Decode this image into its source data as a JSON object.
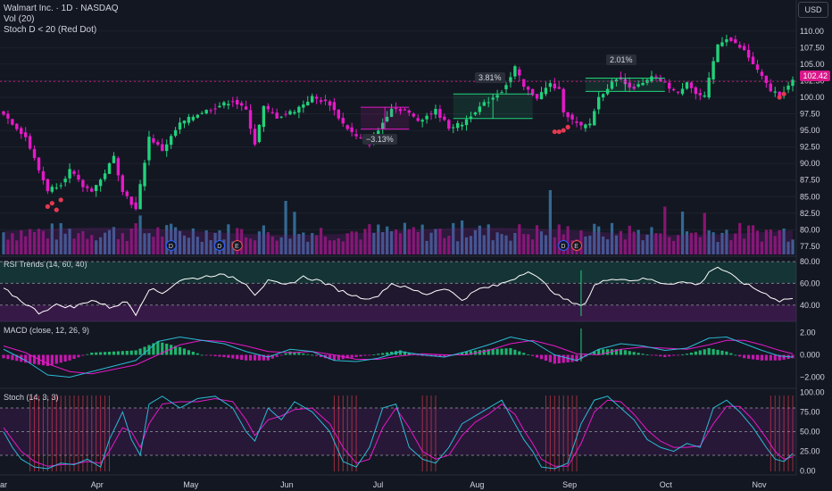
{
  "header": {
    "title": "Walmart Inc. · 1D · NASDAQ",
    "vol": "Vol (20)",
    "indicator": "Stoch D < 20 (Red Dot)",
    "currency": "USD"
  },
  "panes": {
    "rsi_title": "RSI Trends (14, 60, 40)",
    "macd_title": "MACD (close, 12, 26, 9)",
    "stoch_title": "Stoch (14, 3, 3)"
  },
  "colors": {
    "background": "#131722",
    "up": "#22d17a",
    "down": "#e619c8",
    "vol_up": "#3a78a8",
    "vol_down": "#a0157f",
    "rsi": "#ffffff",
    "macd": "#2bbbd4",
    "signal": "#e619c8",
    "stoch_k": "#2bbbd4",
    "stoch_d": "#e619c8",
    "red_dot": "#e53950",
    "red_bar": "#e5395060"
  },
  "annotations": {
    "pct1": "−3.13%",
    "pct2": "3.81%",
    "pct3": "2.01%",
    "current_price": "102.42"
  },
  "chart_data": [
    {
      "type": "candlestick",
      "title": "Walmart Inc. · 1D · NASDAQ",
      "x_ticks": [
        "ar",
        "Apr",
        "May",
        "Jun",
        "Jul",
        "Aug",
        "Sep",
        "Oct",
        "Nov"
      ],
      "y_ticks": [
        "77.50",
        "80.00",
        "82.50",
        "85.00",
        "87.50",
        "90.00",
        "92.50",
        "95.00",
        "97.50",
        "100.00",
        "102.50",
        "105.00",
        "107.50",
        "110.00"
      ],
      "ylim": [
        76,
        112
      ],
      "close_path": [
        [
          0,
          97.5
        ],
        [
          5,
          94
        ],
        [
          8,
          89
        ],
        [
          10,
          86
        ],
        [
          13,
          87
        ],
        [
          15,
          89
        ],
        [
          18,
          86.5
        ],
        [
          20,
          86
        ],
        [
          22,
          87.5
        ],
        [
          25,
          91
        ],
        [
          27,
          86
        ],
        [
          30,
          83
        ],
        [
          33,
          94
        ],
        [
          36,
          92
        ],
        [
          40,
          96
        ],
        [
          44,
          97.5
        ],
        [
          48,
          98.5
        ],
        [
          52,
          99.5
        ],
        [
          55,
          98
        ],
        [
          57,
          93
        ],
        [
          59,
          98.5
        ],
        [
          62,
          97
        ],
        [
          66,
          98
        ],
        [
          70,
          100
        ],
        [
          74,
          99
        ],
        [
          77,
          96
        ],
        [
          80,
          94
        ],
        [
          83,
          93
        ],
        [
          85,
          95
        ],
        [
          88,
          98.5
        ],
        [
          91,
          98
        ],
        [
          94,
          96.5
        ],
        [
          98,
          98
        ],
        [
          101,
          95.5
        ],
        [
          104,
          96
        ],
        [
          107,
          98
        ],
        [
          110,
          99.5
        ],
        [
          113,
          101
        ],
        [
          115,
          103
        ],
        [
          116,
          104.5
        ],
        [
          118,
          101.5
        ],
        [
          121,
          100
        ],
        [
          124,
          102
        ],
        [
          126,
          101
        ],
        [
          127,
          98
        ],
        [
          129,
          96.5
        ],
        [
          131,
          95.5
        ],
        [
          133,
          96
        ],
        [
          135,
          100
        ],
        [
          137,
          101.5
        ],
        [
          139,
          103
        ],
        [
          141,
          102
        ],
        [
          143,
          101.5
        ],
        [
          145,
          102
        ],
        [
          147,
          103
        ],
        [
          149,
          102.5
        ],
        [
          151,
          101.5
        ],
        [
          153,
          100.5
        ],
        [
          155,
          102.5
        ],
        [
          157,
          100.5
        ],
        [
          159,
          100
        ],
        [
          162,
          108
        ],
        [
          164,
          109
        ],
        [
          166,
          108
        ],
        [
          168,
          107
        ],
        [
          170,
          105
        ],
        [
          172,
          103
        ],
        [
          174,
          101
        ],
        [
          176,
          100.5
        ],
        [
          177,
          101
        ],
        [
          179,
          102.4
        ]
      ],
      "red_dots": [
        {
          "i": 10,
          "v": 83.5
        },
        {
          "i": 11,
          "v": 84
        },
        {
          "i": 12,
          "v": 83
        },
        {
          "i": 13,
          "v": 84.5
        },
        {
          "i": 125,
          "v": 94.8
        },
        {
          "i": 126,
          "v": 94.8
        },
        {
          "i": 127,
          "v": 95
        },
        {
          "i": 128,
          "v": 95.5
        },
        {
          "i": 176,
          "v": 100
        },
        {
          "i": 177,
          "v": 100.5
        }
      ],
      "ranges": [
        {
          "i0": 81,
          "i1": 92,
          "v0": 98.5,
          "v1": 95.2,
          "label": "−3.13%"
        },
        {
          "i0": 102,
          "i1": 120,
          "v0": 96.8,
          "v1": 100.5,
          "label": "3.81%"
        },
        {
          "i0": 132,
          "i1": 150,
          "v0": 100.9,
          "v1": 102.9,
          "label": "2.01%"
        }
      ]
    },
    {
      "type": "bar",
      "title": "Vol (20)",
      "note": "volume bars colored by candle direction, with 20-period average"
    },
    {
      "type": "line",
      "title": "RSI Trends (14, 60, 40)",
      "y_ticks": [
        "40.00",
        "60.00",
        "80.00"
      ],
      "ylim": [
        25,
        85
      ],
      "levels": [
        60,
        40
      ],
      "points": [
        [
          0,
          55
        ],
        [
          4,
          44
        ],
        [
          8,
          33
        ],
        [
          12,
          40
        ],
        [
          16,
          38
        ],
        [
          20,
          45
        ],
        [
          24,
          38
        ],
        [
          28,
          43
        ],
        [
          30,
          32
        ],
        [
          33,
          55
        ],
        [
          36,
          51
        ],
        [
          40,
          63
        ],
        [
          44,
          65
        ],
        [
          48,
          68
        ],
        [
          52,
          66
        ],
        [
          55,
          60
        ],
        [
          57,
          50
        ],
        [
          60,
          62
        ],
        [
          64,
          58
        ],
        [
          68,
          66
        ],
        [
          72,
          62
        ],
        [
          76,
          54
        ],
        [
          80,
          48
        ],
        [
          84,
          46
        ],
        [
          88,
          60
        ],
        [
          92,
          55
        ],
        [
          96,
          50
        ],
        [
          100,
          56
        ],
        [
          104,
          45
        ],
        [
          108,
          55
        ],
        [
          112,
          58
        ],
        [
          116,
          65
        ],
        [
          119,
          72
        ],
        [
          122,
          62
        ],
        [
          126,
          48
        ],
        [
          130,
          40
        ],
        [
          132,
          42
        ],
        [
          134,
          58
        ],
        [
          138,
          65
        ],
        [
          142,
          63
        ],
        [
          146,
          64
        ],
        [
          150,
          60
        ],
        [
          154,
          61
        ],
        [
          158,
          59
        ],
        [
          160,
          71
        ],
        [
          162,
          75
        ],
        [
          164,
          70
        ],
        [
          168,
          60
        ],
        [
          172,
          52
        ],
        [
          176,
          44
        ],
        [
          178,
          46
        ],
        [
          179,
          46
        ]
      ]
    },
    {
      "type": "line",
      "title": "MACD (close, 12, 26, 9)",
      "y_ticks": [
        "−2.000",
        "0.000",
        "2.00"
      ],
      "ylim": [
        -3,
        3
      ],
      "macd": [
        [
          0,
          0.5
        ],
        [
          5,
          -0.5
        ],
        [
          10,
          -1.8
        ],
        [
          15,
          -2.0
        ],
        [
          20,
          -1.5
        ],
        [
          25,
          -1.0
        ],
        [
          30,
          -0.5
        ],
        [
          35,
          1.2
        ],
        [
          40,
          1.6
        ],
        [
          45,
          1.3
        ],
        [
          50,
          1.0
        ],
        [
          55,
          0.3
        ],
        [
          60,
          -0.2
        ],
        [
          65,
          0.5
        ],
        [
          70,
          0.3
        ],
        [
          75,
          -0.5
        ],
        [
          80,
          -0.6
        ],
        [
          85,
          -0.3
        ],
        [
          90,
          0.3
        ],
        [
          95,
          0.0
        ],
        [
          100,
          -0.2
        ],
        [
          105,
          0.3
        ],
        [
          110,
          0.9
        ],
        [
          115,
          1.6
        ],
        [
          120,
          1.2
        ],
        [
          125,
          0.0
        ],
        [
          130,
          -0.5
        ],
        [
          135,
          0.5
        ],
        [
          140,
          1.0
        ],
        [
          145,
          0.8
        ],
        [
          150,
          0.4
        ],
        [
          155,
          0.6
        ],
        [
          160,
          1.5
        ],
        [
          164,
          1.6
        ],
        [
          168,
          1.0
        ],
        [
          172,
          0.4
        ],
        [
          176,
          -0.1
        ],
        [
          179,
          -0.2
        ]
      ],
      "signal": [
        [
          0,
          0.8
        ],
        [
          5,
          0.2
        ],
        [
          10,
          -0.8
        ],
        [
          15,
          -1.5
        ],
        [
          20,
          -1.7
        ],
        [
          25,
          -1.3
        ],
        [
          30,
          -0.9
        ],
        [
          35,
          0.0
        ],
        [
          40,
          0.9
        ],
        [
          45,
          1.3
        ],
        [
          50,
          1.2
        ],
        [
          55,
          0.8
        ],
        [
          60,
          0.3
        ],
        [
          65,
          0.2
        ],
        [
          70,
          0.3
        ],
        [
          75,
          0.0
        ],
        [
          80,
          -0.4
        ],
        [
          85,
          -0.4
        ],
        [
          90,
          -0.1
        ],
        [
          95,
          0.1
        ],
        [
          100,
          0.0
        ],
        [
          105,
          0.0
        ],
        [
          110,
          0.4
        ],
        [
          115,
          1.0
        ],
        [
          120,
          1.3
        ],
        [
          125,
          0.8
        ],
        [
          130,
          0.1
        ],
        [
          135,
          0.0
        ],
        [
          140,
          0.5
        ],
        [
          145,
          0.7
        ],
        [
          150,
          0.6
        ],
        [
          155,
          0.5
        ],
        [
          160,
          0.9
        ],
        [
          164,
          1.3
        ],
        [
          168,
          1.3
        ],
        [
          172,
          0.9
        ],
        [
          176,
          0.4
        ],
        [
          179,
          0.1
        ]
      ]
    },
    {
      "type": "line",
      "title": "Stoch (14, 3, 3)",
      "y_ticks": [
        "0.00",
        "25.00",
        "50.00",
        "75.00",
        "100.00"
      ],
      "ylim": [
        -5,
        105
      ],
      "levels": [
        80,
        50,
        20
      ],
      "k": [
        [
          0,
          50
        ],
        [
          2,
          30
        ],
        [
          4,
          15
        ],
        [
          7,
          5
        ],
        [
          10,
          3
        ],
        [
          13,
          10
        ],
        [
          16,
          8
        ],
        [
          19,
          15
        ],
        [
          22,
          5
        ],
        [
          24,
          40
        ],
        [
          27,
          75
        ],
        [
          29,
          40
        ],
        [
          31,
          20
        ],
        [
          33,
          85
        ],
        [
          36,
          95
        ],
        [
          40,
          80
        ],
        [
          44,
          92
        ],
        [
          48,
          95
        ],
        [
          52,
          80
        ],
        [
          55,
          50
        ],
        [
          57,
          38
        ],
        [
          60,
          80
        ],
        [
          63,
          65
        ],
        [
          66,
          88
        ],
        [
          70,
          75
        ],
        [
          74,
          50
        ],
        [
          77,
          12
        ],
        [
          80,
          5
        ],
        [
          83,
          30
        ],
        [
          86,
          80
        ],
        [
          89,
          85
        ],
        [
          92,
          30
        ],
        [
          95,
          15
        ],
        [
          98,
          10
        ],
        [
          101,
          30
        ],
        [
          104,
          60
        ],
        [
          107,
          70
        ],
        [
          110,
          80
        ],
        [
          113,
          90
        ],
        [
          116,
          60
        ],
        [
          118,
          40
        ],
        [
          120,
          25
        ],
        [
          122,
          5
        ],
        [
          125,
          3
        ],
        [
          128,
          10
        ],
        [
          131,
          60
        ],
        [
          134,
          90
        ],
        [
          137,
          95
        ],
        [
          140,
          80
        ],
        [
          143,
          65
        ],
        [
          146,
          40
        ],
        [
          149,
          30
        ],
        [
          152,
          25
        ],
        [
          155,
          35
        ],
        [
          158,
          30
        ],
        [
          161,
          80
        ],
        [
          164,
          90
        ],
        [
          167,
          75
        ],
        [
          170,
          55
        ],
        [
          173,
          30
        ],
        [
          175,
          15
        ],
        [
          177,
          12
        ],
        [
          179,
          22
        ]
      ],
      "d": [
        [
          0,
          55
        ],
        [
          2,
          40
        ],
        [
          4,
          25
        ],
        [
          7,
          12
        ],
        [
          10,
          6
        ],
        [
          13,
          8
        ],
        [
          16,
          9
        ],
        [
          19,
          12
        ],
        [
          22,
          10
        ],
        [
          24,
          25
        ],
        [
          27,
          55
        ],
        [
          29,
          50
        ],
        [
          31,
          30
        ],
        [
          33,
          60
        ],
        [
          36,
          85
        ],
        [
          40,
          88
        ],
        [
          44,
          88
        ],
        [
          48,
          92
        ],
        [
          52,
          88
        ],
        [
          55,
          65
        ],
        [
          57,
          45
        ],
        [
          60,
          65
        ],
        [
          63,
          70
        ],
        [
          66,
          78
        ],
        [
          70,
          80
        ],
        [
          74,
          60
        ],
        [
          77,
          30
        ],
        [
          80,
          10
        ],
        [
          83,
          15
        ],
        [
          86,
          55
        ],
        [
          89,
          80
        ],
        [
          92,
          55
        ],
        [
          95,
          25
        ],
        [
          98,
          15
        ],
        [
          101,
          20
        ],
        [
          104,
          45
        ],
        [
          107,
          62
        ],
        [
          110,
          72
        ],
        [
          113,
          85
        ],
        [
          116,
          72
        ],
        [
          118,
          52
        ],
        [
          120,
          35
        ],
        [
          122,
          15
        ],
        [
          125,
          6
        ],
        [
          128,
          6
        ],
        [
          131,
          35
        ],
        [
          134,
          75
        ],
        [
          137,
          90
        ],
        [
          140,
          88
        ],
        [
          143,
          72
        ],
        [
          146,
          52
        ],
        [
          149,
          38
        ],
        [
          152,
          30
        ],
        [
          155,
          30
        ],
        [
          158,
          32
        ],
        [
          161,
          60
        ],
        [
          164,
          82
        ],
        [
          167,
          82
        ],
        [
          170,
          65
        ],
        [
          173,
          42
        ],
        [
          175,
          25
        ],
        [
          177,
          15
        ],
        [
          179,
          18
        ]
      ],
      "red_bars_ranges": [
        [
          6,
          24
        ],
        [
          75,
          80
        ],
        [
          95,
          98
        ],
        [
          123,
          130
        ],
        [
          174,
          179
        ]
      ]
    }
  ]
}
